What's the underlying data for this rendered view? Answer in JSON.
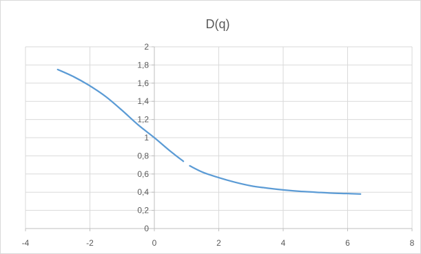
{
  "chart_data": {
    "type": "line",
    "title": "D(q)",
    "xlabel": "",
    "ylabel": "",
    "xlim": [
      -4,
      8
    ],
    "ylim": [
      0,
      2
    ],
    "grid": true,
    "x_ticks": [
      -4,
      -2,
      0,
      2,
      4,
      6,
      8
    ],
    "x_tick_labels": [
      "-4",
      "-2",
      "0",
      "2",
      "4",
      "6",
      "8"
    ],
    "y_ticks": [
      0,
      0.2,
      0.4,
      0.6,
      0.8,
      1,
      1.2,
      1.4,
      1.6,
      1.8,
      2
    ],
    "y_tick_labels": [
      "0",
      "0,2",
      "0,4",
      "0,6",
      "0,8",
      "1",
      "1,2",
      "1,4",
      "1,6",
      "1,8",
      "2"
    ],
    "line_color": "#5b9bd5",
    "series": [
      {
        "segments": [
          {
            "x": [
              -3,
              -2.5,
              -2,
              -1.5,
              -1,
              -0.5,
              0,
              0.5,
              0.9
            ],
            "y": [
              1.75,
              1.67,
              1.57,
              1.45,
              1.3,
              1.14,
              1.0,
              0.85,
              0.74
            ]
          },
          {
            "x": [
              1.1,
              1.5,
              2,
              2.5,
              3,
              3.5,
              4,
              4.5,
              5,
              5.5,
              6,
              6.4
            ],
            "y": [
              0.69,
              0.62,
              0.56,
              0.51,
              0.47,
              0.445,
              0.425,
              0.41,
              0.4,
              0.39,
              0.385,
              0.38
            ]
          }
        ]
      }
    ]
  }
}
